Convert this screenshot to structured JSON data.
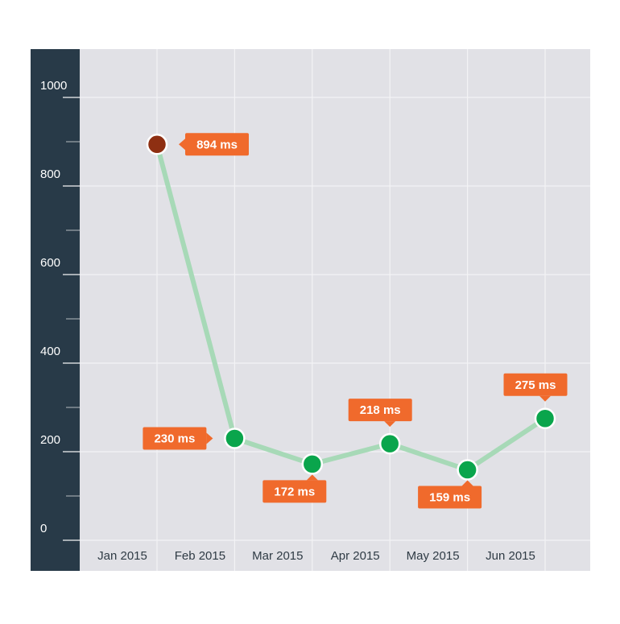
{
  "colors": {
    "plot_background": "#e1e1e6",
    "sidebar": "#283a48",
    "gridline": "#f3f3f5",
    "line": "#a7d9b7",
    "point_normal": "#0aa54c",
    "point_highlight": "#8e2f12",
    "point_stroke": "#ffffff",
    "label_bg": "#f06a2c",
    "label_text": "#ffffff",
    "y_tick_text": "#ffffff",
    "x_tick_text": "#2f3b45"
  },
  "chart_data": {
    "type": "line",
    "title": "",
    "xlabel": "",
    "ylabel": "",
    "ylim": [
      0,
      1000
    ],
    "y_ticks": [
      "0",
      "200",
      "400",
      "600",
      "800",
      "1000"
    ],
    "y_tick_values": [
      0,
      200,
      400,
      600,
      800,
      1000
    ],
    "categories": [
      "Jan 2015",
      "Feb 2015",
      "Mar 2015",
      "Apr 2015",
      "May 2015",
      "Jun 2015"
    ],
    "values": [
      894,
      230,
      172,
      218,
      159,
      275
    ],
    "data_labels": [
      "894 ms",
      "230 ms",
      "172 ms",
      "218 ms",
      "159 ms",
      "275 ms"
    ],
    "label_placement": [
      "right",
      "left",
      "below",
      "above",
      "below",
      "above"
    ],
    "highlighted_index": 0,
    "grid": true,
    "legend": "none"
  }
}
